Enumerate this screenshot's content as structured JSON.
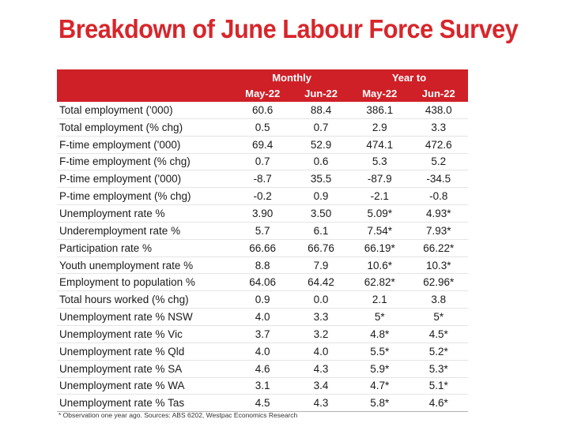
{
  "title": "Breakdown of June Labour Force Survey",
  "table": {
    "group_headers": [
      "Monthly",
      "Year to"
    ],
    "columns": [
      "May-22",
      "Jun-22",
      "May-22",
      "Jun-22"
    ],
    "rows": [
      {
        "label": "Total employment ('000)",
        "values": [
          "60.6",
          "88.4",
          "386.1",
          "438.0"
        ]
      },
      {
        "label": "Total employment (% chg)",
        "values": [
          "0.5",
          "0.7",
          "2.9",
          "3.3"
        ]
      },
      {
        "label": "F-time employment ('000)",
        "values": [
          "69.4",
          "52.9",
          "474.1",
          "472.6"
        ]
      },
      {
        "label": "F-time employment (% chg)",
        "values": [
          "0.7",
          "0.6",
          "5.3",
          "5.2"
        ]
      },
      {
        "label": "P-time employment ('000)",
        "values": [
          "-8.7",
          "35.5",
          "-87.9",
          "-34.5"
        ]
      },
      {
        "label": "P-time employment (% chg)",
        "values": [
          "-0.2",
          "0.9",
          "-2.1",
          "-0.8"
        ]
      },
      {
        "label": "Unemployment rate %",
        "values": [
          "3.90",
          "3.50",
          "5.09*",
          "4.93*"
        ]
      },
      {
        "label": "Underemployment rate %",
        "values": [
          "5.7",
          "6.1",
          "7.54*",
          "7.93*"
        ]
      },
      {
        "label": "Participation rate %",
        "values": [
          "66.66",
          "66.76",
          "66.19*",
          "66.22*"
        ]
      },
      {
        "label": "Youth unemployment rate %",
        "values": [
          "8.8",
          "7.9",
          "10.6*",
          "10.3*"
        ]
      },
      {
        "label": "Employment to population %",
        "values": [
          "64.06",
          "64.42",
          "62.82*",
          "62.96*"
        ]
      },
      {
        "label": "Total hours worked (% chg)",
        "values": [
          "0.9",
          "0.0",
          "2.1",
          "3.8"
        ]
      },
      {
        "label": "Unemployment rate % NSW",
        "values": [
          "4.0",
          "3.3",
          "5*",
          "5*"
        ]
      },
      {
        "label": "Unemployment rate % Vic",
        "values": [
          "3.7",
          "3.2",
          "4.8*",
          "4.5*"
        ]
      },
      {
        "label": "Unemployment rate % Qld",
        "values": [
          "4.0",
          "4.0",
          "5.5*",
          "5.2*"
        ]
      },
      {
        "label": "Unemployment rate % SA",
        "values": [
          "4.6",
          "4.3",
          "5.9*",
          "5.3*"
        ]
      },
      {
        "label": "Unemployment rate % WA",
        "values": [
          "3.1",
          "3.4",
          "4.7*",
          "5.1*"
        ]
      },
      {
        "label": "Unemployment rate % Tas",
        "values": [
          "4.5",
          "4.3",
          "5.8*",
          "4.6*"
        ]
      }
    ]
  },
  "footnote": "* Observation one year ago.  Sources: ABS 6202, Westpac Economics Research",
  "colors": {
    "title": "#d7262b",
    "header_bg": "#cf2027",
    "header_text": "#ffffff"
  }
}
